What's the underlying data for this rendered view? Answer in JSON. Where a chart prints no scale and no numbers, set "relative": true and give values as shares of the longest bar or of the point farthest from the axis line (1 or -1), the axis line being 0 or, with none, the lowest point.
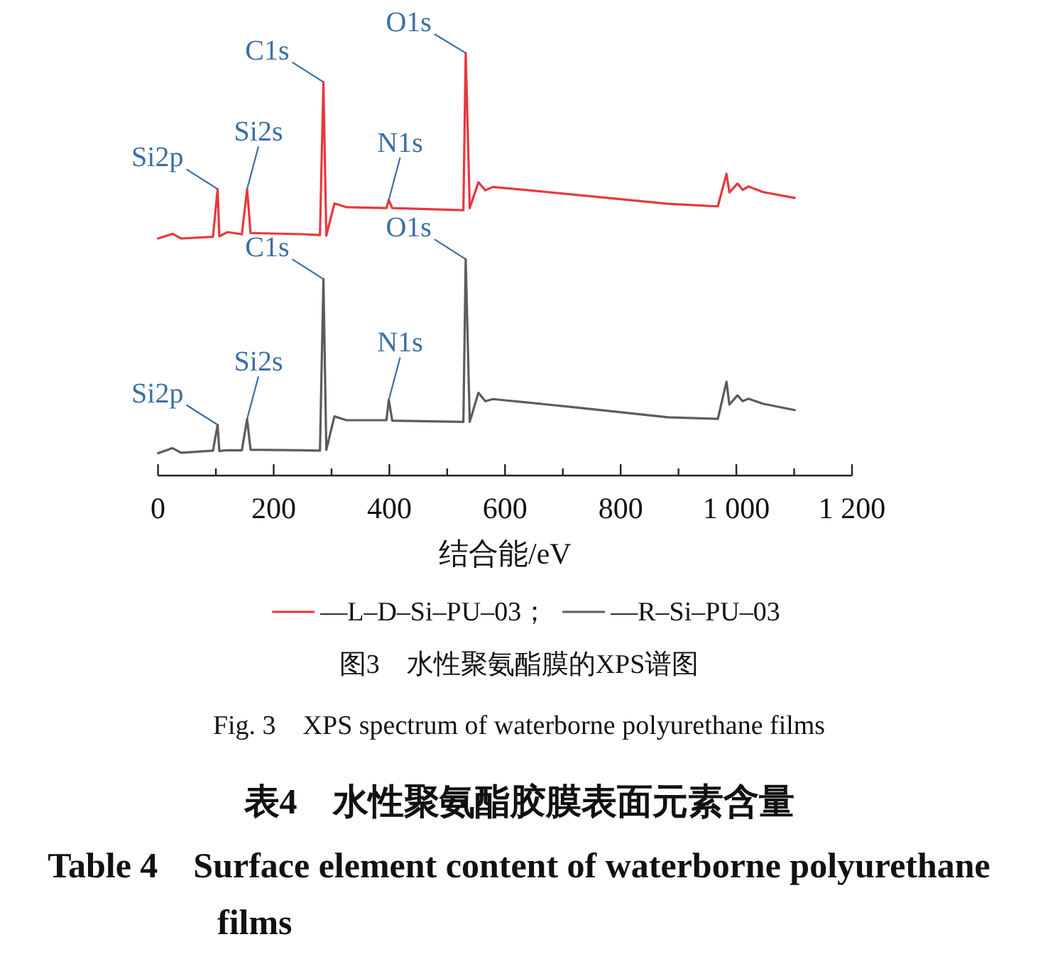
{
  "chart_data": {
    "type": "line",
    "relative": true,
    "xlabel": "结合能/eV",
    "xlim": [
      0,
      1200
    ],
    "xticks": [
      0,
      {
        "value": 100,
        "label": null
      },
      200,
      {
        "value": 300,
        "label": null
      },
      400,
      {
        "value": 500,
        "label": null
      },
      600,
      {
        "value": 700,
        "label": null
      },
      800,
      {
        "value": 900,
        "label": null
      },
      {
        "value": 1000,
        "label": "1 000"
      },
      {
        "value": 1100,
        "label": null
      },
      {
        "value": 1200,
        "label": "1 200"
      }
    ],
    "x": [
      0,
      25,
      40,
      95,
      103,
      106,
      120,
      145,
      154,
      160,
      250,
      280,
      286,
      291,
      305,
      326,
      395,
      399,
      405,
      528,
      532,
      539,
      554,
      566,
      579,
      718,
      882,
      968,
      983,
      988,
      1002,
      1011,
      1021,
      1046,
      1101
    ],
    "legend": "bottom",
    "series": [
      {
        "name": "—L–D–Si–PU–03；",
        "color": "#e8383d",
        "values": [
          0.561,
          0.572,
          0.561,
          0.565,
          0.678,
          0.566,
          0.576,
          0.571,
          0.678,
          0.574,
          0.571,
          0.569,
          0.931,
          0.568,
          0.644,
          0.635,
          0.633,
          0.652,
          0.633,
          0.628,
          1,
          0.633,
          0.694,
          0.675,
          0.683,
          0.665,
          0.643,
          0.637,
          0.714,
          0.67,
          0.691,
          0.676,
          0.684,
          0.671,
          0.657
        ]
      },
      {
        "name": "—R–Si–PU–03",
        "color": "#5c5c5c",
        "values": [
          0.053,
          0.065,
          0.054,
          0.059,
          0.12,
          0.058,
          0.06,
          0.06,
          0.134,
          0.061,
          0.06,
          0.059,
          0.465,
          0.061,
          0.14,
          0.131,
          0.131,
          0.179,
          0.13,
          0.127,
          0.512,
          0.127,
          0.196,
          0.176,
          0.181,
          0.162,
          0.138,
          0.134,
          0.222,
          0.168,
          0.19,
          0.176,
          0.182,
          0.17,
          0.155
        ]
      }
    ],
    "annotations": [
      {
        "text": "Si2p",
        "x": 103,
        "y": 0.678
      },
      {
        "text": "Si2s",
        "x": 154,
        "y": 0.678
      },
      {
        "text": "C1s",
        "x": 286,
        "y": 0.931
      },
      {
        "text": "N1s",
        "x": 399,
        "y": 0.652
      },
      {
        "text": "O1s",
        "x": 532,
        "y": 1
      },
      {
        "text": "Si2p",
        "x": 103,
        "y": 0.12
      },
      {
        "text": "Si2s",
        "x": 154,
        "y": 0.134
      },
      {
        "text": "C1s",
        "x": 286,
        "y": 0.465
      },
      {
        "text": "N1s",
        "x": 399,
        "y": 0.179
      },
      {
        "text": "O1s",
        "x": 532,
        "y": 0.512
      },
      "图3　水性聚氨酯膜的XPS谱图",
      "Fig. 3　XPS spectrum of waterborne polyurethane films",
      "表4　水性聚氨酯胶膜表面元素含量",
      "Table 4　Surface element content of waterborne polyurethane films"
    ]
  }
}
